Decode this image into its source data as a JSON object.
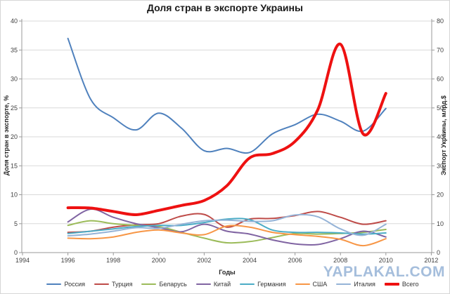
{
  "title": "Доля стран в экспорте Украины",
  "watermark": "YAPLAKAL.COM",
  "chart_data": {
    "type": "line",
    "smoothed": true,
    "grid": true,
    "legend_position": "bottom",
    "title": "Доля стран в экспорте Украины",
    "xlabel": "Годы",
    "ylabel_left": "Доля стран в экспорте, %",
    "ylabel_right": "Экспорт Украины, млрд.$",
    "xlim": [
      1994,
      2012
    ],
    "x_tick_years": [
      1994,
      1996,
      1998,
      2000,
      2002,
      2004,
      2006,
      2008,
      2010,
      2012
    ],
    "ylim_left": [
      0,
      40
    ],
    "y_ticks_left": [
      0,
      5,
      10,
      15,
      20,
      25,
      30,
      35,
      40
    ],
    "ylim_right": [
      0,
      80
    ],
    "y_ticks_right": [
      0,
      10,
      20,
      30,
      40,
      50,
      60,
      70,
      80
    ],
    "x": [
      1996,
      1997,
      1998,
      1999,
      2000,
      2001,
      2002,
      2003,
      2004,
      2005,
      2006,
      2007,
      2008,
      2009,
      2010
    ],
    "series": [
      {
        "name": "Россия",
        "color": "#4F81BD",
        "axis": "left",
        "width": 2,
        "values": [
          37.0,
          26.5,
          23.3,
          21.2,
          24.1,
          21.5,
          17.6,
          18.0,
          17.3,
          20.5,
          22.1,
          23.9,
          22.7,
          21.0,
          24.9
        ]
      },
      {
        "name": "Турция",
        "color": "#BE4B48",
        "axis": "left",
        "width": 2,
        "values": [
          3.5,
          3.7,
          4.4,
          4.8,
          5.0,
          6.3,
          6.6,
          4.4,
          5.8,
          5.9,
          6.4,
          7.1,
          6.1,
          4.9,
          5.5
        ]
      },
      {
        "name": "Беларусь",
        "color": "#9BBB59",
        "axis": "left",
        "width": 2,
        "values": [
          4.7,
          5.5,
          5.0,
          4.7,
          4.5,
          3.5,
          2.5,
          1.7,
          1.9,
          2.6,
          3.3,
          3.2,
          3.3,
          3.5,
          4.0
        ]
      },
      {
        "name": "Китай",
        "color": "#8064A2",
        "axis": "left",
        "width": 2,
        "values": [
          5.3,
          7.5,
          6.1,
          5.0,
          4.3,
          3.6,
          4.9,
          3.7,
          3.2,
          2.2,
          1.5,
          1.4,
          2.4,
          3.7,
          2.7
        ]
      },
      {
        "name": "Германия",
        "color": "#4BACC6",
        "axis": "left",
        "width": 2,
        "values": [
          3.3,
          3.7,
          4.1,
          4.5,
          4.7,
          4.7,
          5.2,
          5.8,
          5.7,
          3.9,
          3.5,
          3.5,
          3.4,
          3.2,
          3.4
        ]
      },
      {
        "name": "США",
        "color": "#F79646",
        "axis": "left",
        "width": 2,
        "values": [
          2.5,
          2.4,
          2.7,
          3.5,
          3.9,
          3.4,
          3.1,
          4.6,
          4.4,
          3.5,
          3.1,
          2.8,
          2.3,
          1.2,
          2.4
        ]
      },
      {
        "name": "Италия",
        "color": "#95B3D7",
        "axis": "left",
        "width": 2,
        "values": [
          2.9,
          3.2,
          3.7,
          4.3,
          4.2,
          4.9,
          5.5,
          5.6,
          5.4,
          5.5,
          6.5,
          6.2,
          4.1,
          3.0,
          4.9
        ]
      },
      {
        "name": "Всего",
        "color": "#EE1111",
        "axis": "right",
        "width": 4,
        "values": [
          15.5,
          15.4,
          14.2,
          13.1,
          14.6,
          16.3,
          18.0,
          23.1,
          32.7,
          34.2,
          38.4,
          49.3,
          72.0,
          41.0,
          55.0
        ]
      }
    ]
  }
}
